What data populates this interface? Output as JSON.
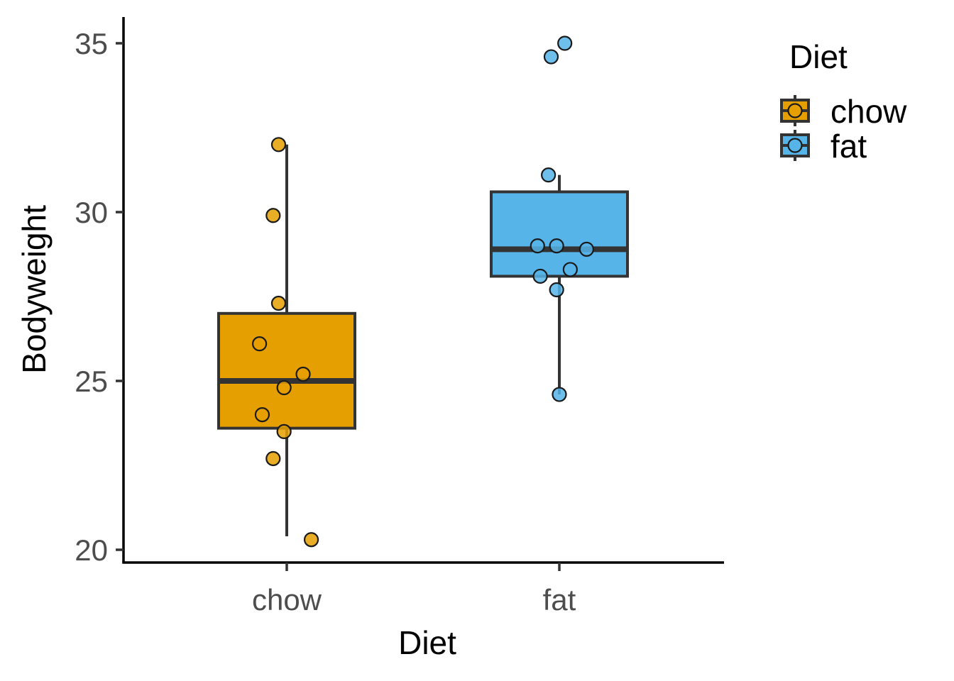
{
  "chart_data": {
    "type": "boxplot",
    "title": "",
    "xlabel": "Diet",
    "ylabel": "Bodyweight",
    "categories": [
      "chow",
      "fat"
    ],
    "ylim": [
      19.6,
      35.8
    ],
    "yticks": [
      20,
      25,
      30,
      35
    ],
    "grid": false,
    "legend": {
      "title": "Diet",
      "position": "top-right",
      "entries": [
        "chow",
        "fat"
      ]
    },
    "colors": {
      "chow": "#E69F00",
      "fat": "#56B4E9",
      "outline": "#333333"
    },
    "boxes": [
      {
        "category": "chow",
        "whisker_low": 20.4,
        "q1": 23.6,
        "median": 25.0,
        "q3": 27.0,
        "whisker_high": 32.0
      },
      {
        "category": "fat",
        "whisker_low": 24.6,
        "q1": 28.1,
        "median": 28.9,
        "q3": 30.6,
        "whisker_high": 31.1
      }
    ],
    "points": [
      {
        "category": "chow",
        "values": [
          32.0,
          29.9,
          27.3,
          26.1,
          25.2,
          24.8,
          24.0,
          23.5,
          22.7,
          20.3
        ],
        "jitter": [
          -0.03,
          -0.05,
          -0.03,
          -0.1,
          0.06,
          -0.01,
          -0.09,
          -0.01,
          -0.05,
          0.09
        ]
      },
      {
        "category": "fat",
        "values": [
          35.0,
          34.6,
          31.1,
          29.0,
          29.0,
          28.9,
          28.3,
          28.1,
          27.7,
          24.6
        ],
        "jitter": [
          0.02,
          -0.03,
          -0.04,
          -0.08,
          -0.01,
          0.1,
          0.04,
          -0.07,
          -0.01,
          0.0
        ]
      }
    ]
  }
}
